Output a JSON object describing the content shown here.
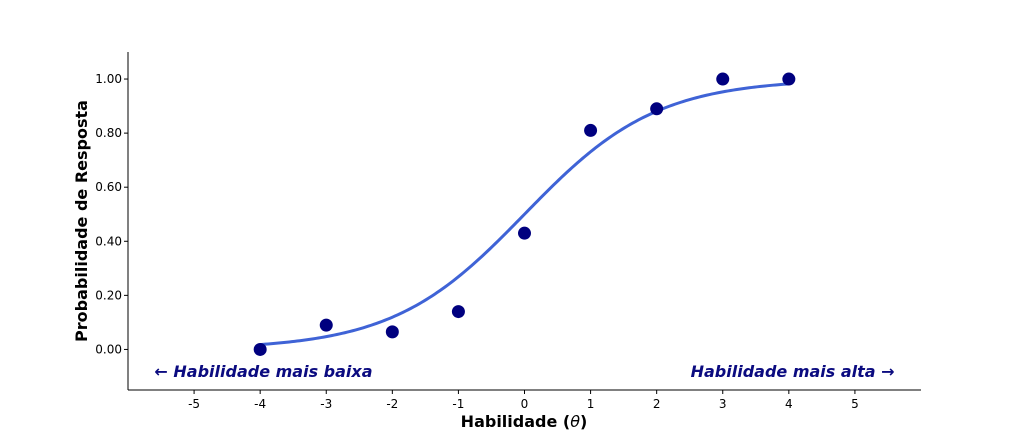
{
  "chart_data": {
    "type": "scatter",
    "title": "",
    "xlabel_prefix": "Habilidade (",
    "xlabel_symbol": "θ",
    "xlabel_suffix": ")",
    "ylabel": "Probabilidade de Resposta",
    "xlim": [
      -6.0,
      6.0
    ],
    "ylim": [
      -0.15,
      1.1
    ],
    "xticks": [
      -5,
      -4,
      -3,
      -2,
      -1,
      0,
      1,
      2,
      3,
      4,
      5
    ],
    "xtick_labels": [
      "-5",
      "-4",
      "-3",
      "-2",
      "-1",
      "0",
      "1",
      "2",
      "3",
      "4",
      "5"
    ],
    "yticks": [
      0.0,
      0.2,
      0.4,
      0.6,
      0.8,
      1.0
    ],
    "ytick_labels": [
      "0.00",
      "0.20",
      "0.40",
      "0.60",
      "0.80",
      "1.00"
    ],
    "grid": false,
    "series": [
      {
        "kind": "scatter",
        "color": "#00007f",
        "x": [
          -4,
          -3,
          -2,
          -1,
          0,
          1,
          2,
          3,
          4
        ],
        "y": [
          0.0,
          0.09,
          0.065,
          0.14,
          0.43,
          0.81,
          0.89,
          1.0,
          1.0
        ]
      },
      {
        "kind": "line",
        "color": "#3f63d6",
        "model": "logistic",
        "discrimination": 1.0,
        "difficulty": 0.0,
        "x_range": [
          -4,
          4
        ]
      }
    ],
    "annotations": [
      {
        "text": "← Habilidade mais baixa",
        "x": -5.6,
        "y": -0.08,
        "anchor": "start"
      },
      {
        "text": "Habilidade mais alta →",
        "x": 5.6,
        "y": -0.08,
        "anchor": "end"
      }
    ]
  }
}
